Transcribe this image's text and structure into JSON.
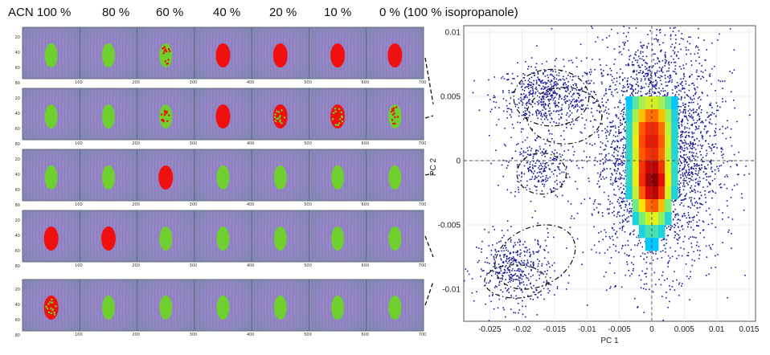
{
  "column_headers": [
    "ACN 100 %",
    "80 %",
    "60 %",
    "40 %",
    "20 %",
    "10 %",
    "0 % (100 % isopropanole)"
  ],
  "image_strip": {
    "y_ticks": [
      "20",
      "40",
      "60",
      "80"
    ],
    "x_ticks": [
      "100",
      "200",
      "300",
      "400",
      "500",
      "600",
      "700"
    ],
    "colors": {
      "green": "#6fcf2f",
      "red": "#f01010",
      "background": "#9a84c8"
    },
    "spot_classes": [
      [
        "green",
        "green",
        "green-red",
        "red",
        "red",
        "red",
        "red"
      ],
      [
        "green",
        "green",
        "green-red",
        "red",
        "red-green",
        "red-green",
        "green-red"
      ],
      [
        "green",
        "green",
        "red",
        "green",
        "green",
        "green",
        "green"
      ],
      [
        "red",
        "red",
        "green",
        "green",
        "green",
        "green",
        "green"
      ],
      [
        "red-green",
        "green",
        "green",
        "green",
        "green",
        "green",
        "green"
      ]
    ]
  },
  "chart_data": {
    "type": "scatter",
    "title": "",
    "xlabel": "PC 1",
    "ylabel": "PC 2",
    "xlim": [
      -0.029,
      0.016
    ],
    "ylim": [
      -0.0125,
      0.0105
    ],
    "x_ticks": [
      "-0.025",
      "-0.02",
      "-0.015",
      "-0.01",
      "-0.005",
      "0",
      "0.005",
      "0.01",
      "0.015"
    ],
    "x_tick_values": [
      -0.025,
      -0.02,
      -0.015,
      -0.01,
      -0.005,
      0,
      0.005,
      0.01,
      0.015
    ],
    "y_ticks": [
      "0.01",
      "0.005",
      "0",
      "-0.005",
      "-0.01"
    ],
    "y_tick_values": [
      0.01,
      0.005,
      0,
      -0.005,
      -0.01
    ],
    "grid": true,
    "point_color": "#1a1a9a",
    "clusters": [
      {
        "cx": -0.016,
        "cy": 0.005,
        "sx": 0.004,
        "sy": 0.0012,
        "n": 600
      },
      {
        "cx": -0.0175,
        "cy": -0.0005,
        "sx": 0.0025,
        "sy": 0.0012,
        "n": 250
      },
      {
        "cx": -0.021,
        "cy": -0.0085,
        "sx": 0.003,
        "sy": 0.0014,
        "n": 420
      },
      {
        "cx": 0.0008,
        "cy": 0.0008,
        "sx": 0.0048,
        "sy": 0.0045,
        "n": 3200
      }
    ],
    "density_cells": [
      {
        "x": -0.0035,
        "y": 0.0045,
        "d": 0.3
      },
      {
        "x": -0.0025,
        "y": 0.0045,
        "d": 0.45
      },
      {
        "x": -0.0015,
        "y": 0.0045,
        "d": 0.55
      },
      {
        "x": -0.0005,
        "y": 0.0045,
        "d": 0.6
      },
      {
        "x": 0.0005,
        "y": 0.0045,
        "d": 0.6
      },
      {
        "x": 0.0015,
        "y": 0.0045,
        "d": 0.55
      },
      {
        "x": 0.0025,
        "y": 0.0045,
        "d": 0.45
      },
      {
        "x": 0.0035,
        "y": 0.0045,
        "d": 0.3
      },
      {
        "x": -0.0035,
        "y": 0.0035,
        "d": 0.35
      },
      {
        "x": -0.0025,
        "y": 0.0035,
        "d": 0.55
      },
      {
        "x": -0.0015,
        "y": 0.0035,
        "d": 0.7
      },
      {
        "x": -0.0005,
        "y": 0.0035,
        "d": 0.78
      },
      {
        "x": 0.0005,
        "y": 0.0035,
        "d": 0.78
      },
      {
        "x": 0.0015,
        "y": 0.0035,
        "d": 0.7
      },
      {
        "x": 0.0025,
        "y": 0.0035,
        "d": 0.55
      },
      {
        "x": 0.0035,
        "y": 0.0035,
        "d": 0.35
      },
      {
        "x": -0.0035,
        "y": 0.0025,
        "d": 0.38
      },
      {
        "x": -0.0025,
        "y": 0.0025,
        "d": 0.6
      },
      {
        "x": -0.0015,
        "y": 0.0025,
        "d": 0.8
      },
      {
        "x": -0.0005,
        "y": 0.0025,
        "d": 0.86
      },
      {
        "x": 0.0005,
        "y": 0.0025,
        "d": 0.86
      },
      {
        "x": 0.0015,
        "y": 0.0025,
        "d": 0.78
      },
      {
        "x": 0.0025,
        "y": 0.0025,
        "d": 0.58
      },
      {
        "x": 0.0035,
        "y": 0.0025,
        "d": 0.36
      },
      {
        "x": -0.0035,
        "y": 0.0015,
        "d": 0.38
      },
      {
        "x": -0.0025,
        "y": 0.0015,
        "d": 0.62
      },
      {
        "x": -0.0015,
        "y": 0.0015,
        "d": 0.82
      },
      {
        "x": -0.0005,
        "y": 0.0015,
        "d": 0.88
      },
      {
        "x": 0.0005,
        "y": 0.0015,
        "d": 0.88
      },
      {
        "x": 0.0015,
        "y": 0.0015,
        "d": 0.8
      },
      {
        "x": 0.0025,
        "y": 0.0015,
        "d": 0.6
      },
      {
        "x": 0.0035,
        "y": 0.0015,
        "d": 0.36
      },
      {
        "x": -0.0035,
        "y": 0.0005,
        "d": 0.38
      },
      {
        "x": -0.0025,
        "y": 0.0005,
        "d": 0.6
      },
      {
        "x": -0.0015,
        "y": 0.0005,
        "d": 0.8
      },
      {
        "x": -0.0005,
        "y": 0.0005,
        "d": 0.85
      },
      {
        "x": 0.0005,
        "y": 0.0005,
        "d": 0.86
      },
      {
        "x": 0.0015,
        "y": 0.0005,
        "d": 0.78
      },
      {
        "x": 0.0025,
        "y": 0.0005,
        "d": 0.58
      },
      {
        "x": 0.0035,
        "y": 0.0005,
        "d": 0.36
      },
      {
        "x": -0.0035,
        "y": -0.0005,
        "d": 0.38
      },
      {
        "x": -0.0025,
        "y": -0.0005,
        "d": 0.62
      },
      {
        "x": -0.0015,
        "y": -0.0005,
        "d": 0.85
      },
      {
        "x": -0.0005,
        "y": -0.0005,
        "d": 0.93
      },
      {
        "x": 0.0005,
        "y": -0.0005,
        "d": 0.95
      },
      {
        "x": 0.0015,
        "y": -0.0005,
        "d": 0.85
      },
      {
        "x": 0.0025,
        "y": -0.0005,
        "d": 0.62
      },
      {
        "x": 0.0035,
        "y": -0.0005,
        "d": 0.38
      },
      {
        "x": -0.0035,
        "y": -0.0015,
        "d": 0.38
      },
      {
        "x": -0.0025,
        "y": -0.0015,
        "d": 0.62
      },
      {
        "x": -0.0015,
        "y": -0.0015,
        "d": 0.86
      },
      {
        "x": -0.0005,
        "y": -0.0015,
        "d": 0.97
      },
      {
        "x": 0.0005,
        "y": -0.0015,
        "d": 1.0
      },
      {
        "x": 0.0015,
        "y": -0.0015,
        "d": 0.9
      },
      {
        "x": 0.0025,
        "y": -0.0015,
        "d": 0.64
      },
      {
        "x": 0.0035,
        "y": -0.0015,
        "d": 0.38
      },
      {
        "x": -0.0035,
        "y": -0.0025,
        "d": 0.35
      },
      {
        "x": -0.0025,
        "y": -0.0025,
        "d": 0.58
      },
      {
        "x": -0.0015,
        "y": -0.0025,
        "d": 0.8
      },
      {
        "x": -0.0005,
        "y": -0.0025,
        "d": 0.92
      },
      {
        "x": 0.0005,
        "y": -0.0025,
        "d": 0.95
      },
      {
        "x": 0.0015,
        "y": -0.0025,
        "d": 0.85
      },
      {
        "x": 0.0025,
        "y": -0.0025,
        "d": 0.6
      },
      {
        "x": 0.0035,
        "y": -0.0025,
        "d": 0.35
      },
      {
        "x": -0.0025,
        "y": -0.0035,
        "d": 0.48
      },
      {
        "x": -0.0015,
        "y": -0.0035,
        "d": 0.66
      },
      {
        "x": -0.0005,
        "y": -0.0035,
        "d": 0.78
      },
      {
        "x": 0.0005,
        "y": -0.0035,
        "d": 0.8
      },
      {
        "x": 0.0015,
        "y": -0.0035,
        "d": 0.7
      },
      {
        "x": 0.0025,
        "y": -0.0035,
        "d": 0.5
      },
      {
        "x": -0.0025,
        "y": -0.0045,
        "d": 0.35
      },
      {
        "x": -0.0015,
        "y": -0.0045,
        "d": 0.5
      },
      {
        "x": -0.0005,
        "y": -0.0045,
        "d": 0.6
      },
      {
        "x": 0.0005,
        "y": -0.0045,
        "d": 0.62
      },
      {
        "x": 0.0015,
        "y": -0.0045,
        "d": 0.52
      },
      {
        "x": 0.0025,
        "y": -0.0045,
        "d": 0.36
      },
      {
        "x": -0.0015,
        "y": -0.0055,
        "d": 0.35
      },
      {
        "x": -0.0005,
        "y": -0.0055,
        "d": 0.42
      },
      {
        "x": 0.0005,
        "y": -0.0055,
        "d": 0.42
      },
      {
        "x": 0.0015,
        "y": -0.0055,
        "d": 0.35
      },
      {
        "x": -0.0005,
        "y": -0.0065,
        "d": 0.3
      },
      {
        "x": 0.0005,
        "y": -0.0065,
        "d": 0.3
      }
    ],
    "ellipses": [
      {
        "cx": -0.0155,
        "cy": 0.0049,
        "rx": 0.0058,
        "ry": 0.0022,
        "angle": 0
      },
      {
        "cx": -0.0135,
        "cy": 0.0035,
        "rx": 0.0058,
        "ry": 0.0022,
        "angle": 0
      },
      {
        "cx": -0.017,
        "cy": -0.001,
        "rx": 0.0038,
        "ry": 0.0016,
        "angle": 0
      },
      {
        "cx": -0.018,
        "cy": -0.0075,
        "rx": 0.0065,
        "ry": 0.0023,
        "angle": 25
      },
      {
        "cx": -0.021,
        "cy": -0.0094,
        "rx": 0.0048,
        "ry": 0.0013,
        "angle": 0
      }
    ]
  }
}
